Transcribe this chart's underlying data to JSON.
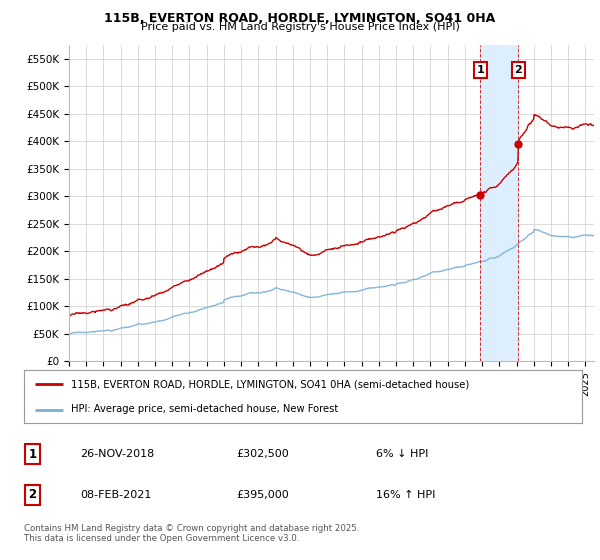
{
  "title_line1": "115B, EVERTON ROAD, HORDLE, LYMINGTON, SO41 0HA",
  "title_line2": "Price paid vs. HM Land Registry's House Price Index (HPI)",
  "ylabel_ticks": [
    "£0",
    "£50K",
    "£100K",
    "£150K",
    "£200K",
    "£250K",
    "£300K",
    "£350K",
    "£400K",
    "£450K",
    "£500K",
    "£550K"
  ],
  "ytick_values": [
    0,
    50000,
    100000,
    150000,
    200000,
    250000,
    300000,
    350000,
    400000,
    450000,
    500000,
    550000
  ],
  "ylim": [
    0,
    575000
  ],
  "xlim_start": 1995.0,
  "xlim_end": 2025.5,
  "property_color": "#cc0000",
  "hpi_color": "#7ab0d4",
  "shade_color": "#ddeeff",
  "marker1_date": 2018.9,
  "marker1_value": 302500,
  "marker2_date": 2021.1,
  "marker2_value": 395000,
  "legend_property": "115B, EVERTON ROAD, HORDLE, LYMINGTON, SO41 0HA (semi-detached house)",
  "legend_hpi": "HPI: Average price, semi-detached house, New Forest",
  "annotation1_date": "26-NOV-2018",
  "annotation1_price": "£302,500",
  "annotation1_hpi": "6% ↓ HPI",
  "annotation2_date": "08-FEB-2021",
  "annotation2_price": "£395,000",
  "annotation2_hpi": "16% ↑ HPI",
  "footer": "Contains HM Land Registry data © Crown copyright and database right 2025.\nThis data is licensed under the Open Government Licence v3.0.",
  "background_color": "#ffffff",
  "grid_color": "#cccccc"
}
